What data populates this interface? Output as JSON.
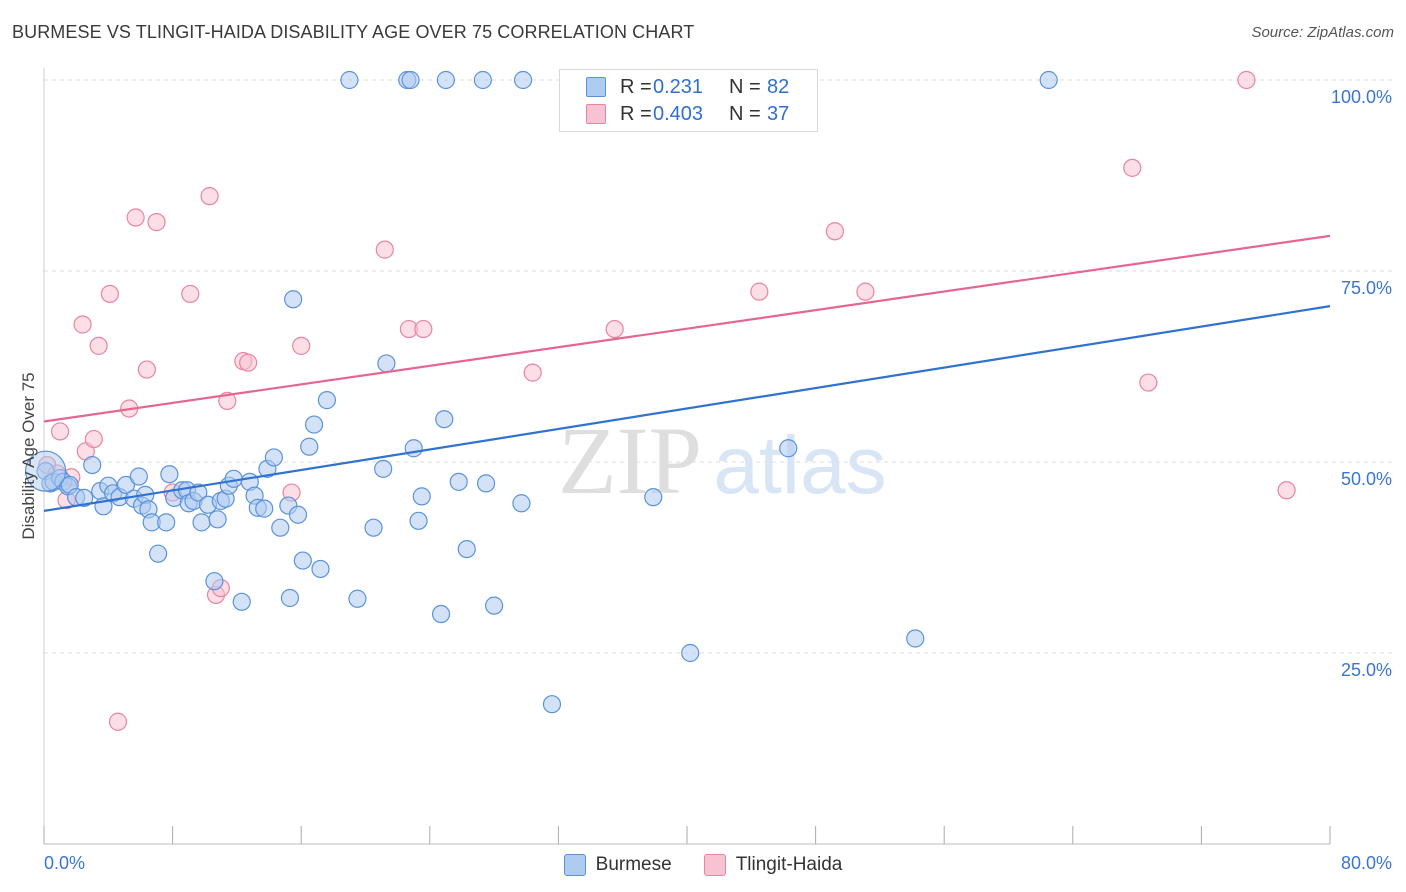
{
  "title": "BURMESE VS TLINGIT-HAIDA DISABILITY AGE OVER 75 CORRELATION CHART",
  "source": "Source: ZipAtlas.com",
  "watermark": {
    "zip": "ZIP",
    "atlas": "atlas"
  },
  "legend": {
    "r_label": "R =",
    "n_label": "N =",
    "burmese": {
      "r": "0.231",
      "n": "82"
    },
    "tlingit": {
      "r": "0.403",
      "n": "37"
    }
  },
  "colors": {
    "burmese_fill": "#aecbf0",
    "burmese_stroke": "#5b93d9",
    "burmese_line": "#2f72d0",
    "tlingit_fill": "#f7c3d2",
    "tlingit_stroke": "#e8859f",
    "tlingit_line": "#e5678f",
    "tick_label": "#3a76d0",
    "grid": "#dddddd"
  },
  "chart_data": {
    "type": "scatter",
    "title": "BURMESE VS TLINGIT-HAIDA DISABILITY AGE OVER 75 CORRELATION CHART",
    "xlabel": "",
    "ylabel": "Disability Age Over 75",
    "xlim": [
      0,
      80
    ],
    "ylim": [
      0,
      105
    ],
    "x_tick_labels": [
      "0.0%",
      "80.0%"
    ],
    "y_ticks": [
      25,
      50,
      75,
      100
    ],
    "y_tick_labels": [
      "25.0%",
      "50.0%",
      "75.0%",
      "100.0%"
    ],
    "grid": true,
    "legend_position": "top-center",
    "series": [
      {
        "name": "Burmese",
        "trend": {
          "x": [
            0,
            80
          ],
          "y": [
            43.6,
            70.4
          ]
        },
        "points": [
          [
            19,
            100
          ],
          [
            22.6,
            100
          ],
          [
            22.8,
            100
          ],
          [
            25,
            100
          ],
          [
            27.3,
            100
          ],
          [
            29.8,
            100
          ],
          [
            62.5,
            100
          ],
          [
            0.1,
            48.8
          ],
          [
            0.4,
            47.2
          ],
          [
            0.6,
            47.4
          ],
          [
            1.0,
            47.9
          ],
          [
            1.2,
            47.4
          ],
          [
            1.5,
            46.8
          ],
          [
            1.6,
            47.0
          ],
          [
            2.0,
            45.4
          ],
          [
            2.5,
            45.3
          ],
          [
            3.0,
            49.6
          ],
          [
            3.5,
            46.2
          ],
          [
            3.7,
            44.2
          ],
          [
            4.0,
            46.9
          ],
          [
            4.3,
            45.9
          ],
          [
            4.7,
            45.4
          ],
          [
            5.1,
            47.0
          ],
          [
            5.6,
            45.2
          ],
          [
            5.9,
            48.1
          ],
          [
            6.1,
            44.3
          ],
          [
            6.3,
            45.7
          ],
          [
            6.5,
            43.8
          ],
          [
            6.7,
            42.1
          ],
          [
            7.1,
            38.0
          ],
          [
            7.6,
            42.1
          ],
          [
            7.8,
            48.4
          ],
          [
            8.1,
            45.3
          ],
          [
            8.6,
            46.3
          ],
          [
            8.9,
            46.3
          ],
          [
            9.0,
            44.6
          ],
          [
            9.3,
            44.9
          ],
          [
            9.6,
            46.0
          ],
          [
            9.8,
            42.1
          ],
          [
            10.2,
            44.4
          ],
          [
            10.6,
            34.4
          ],
          [
            10.8,
            42.5
          ],
          [
            11.0,
            44.9
          ],
          [
            11.3,
            45.2
          ],
          [
            11.5,
            46.9
          ],
          [
            11.8,
            47.8
          ],
          [
            12.3,
            31.7
          ],
          [
            12.8,
            47.4
          ],
          [
            13.1,
            45.6
          ],
          [
            13.3,
            44.0
          ],
          [
            13.7,
            43.9
          ],
          [
            13.9,
            49.1
          ],
          [
            14.3,
            50.6
          ],
          [
            14.7,
            41.4
          ],
          [
            15.2,
            44.3
          ],
          [
            15.3,
            32.2
          ],
          [
            15.5,
            71.3
          ],
          [
            15.8,
            43.1
          ],
          [
            16.1,
            37.1
          ],
          [
            16.5,
            52.0
          ],
          [
            16.8,
            54.9
          ],
          [
            17.2,
            36.0
          ],
          [
            17.6,
            58.1
          ],
          [
            19.5,
            32.1
          ],
          [
            20.5,
            41.4
          ],
          [
            21.1,
            49.1
          ],
          [
            21.3,
            62.9
          ],
          [
            23.0,
            51.8
          ],
          [
            23.3,
            42.3
          ],
          [
            23.5,
            45.5
          ],
          [
            24.7,
            30.1
          ],
          [
            24.9,
            55.6
          ],
          [
            25.8,
            47.4
          ],
          [
            26.3,
            38.6
          ],
          [
            27.5,
            47.2
          ],
          [
            28.0,
            31.2
          ],
          [
            29.7,
            44.6
          ],
          [
            31.6,
            18.3
          ],
          [
            37.9,
            45.4
          ],
          [
            40.2,
            25.0
          ],
          [
            46.3,
            51.8
          ],
          [
            54.2,
            26.9
          ]
        ]
      },
      {
        "name": "Tlingit-Haida",
        "trend": {
          "x": [
            0,
            80
          ],
          "y": [
            55.3,
            79.6
          ]
        },
        "points": [
          [
            0.2,
            49.6
          ],
          [
            0.8,
            48.5
          ],
          [
            1.0,
            54.0
          ],
          [
            1.4,
            45.0
          ],
          [
            1.7,
            48.0
          ],
          [
            2.4,
            68.0
          ],
          [
            2.6,
            51.4
          ],
          [
            3.1,
            53.0
          ],
          [
            3.4,
            65.2
          ],
          [
            4.1,
            72.0
          ],
          [
            4.6,
            16.0
          ],
          [
            5.3,
            57.0
          ],
          [
            5.7,
            82.0
          ],
          [
            6.4,
            62.1
          ],
          [
            7.0,
            81.4
          ],
          [
            8.0,
            46.0
          ],
          [
            9.1,
            72.0
          ],
          [
            10.3,
            84.8
          ],
          [
            10.7,
            32.6
          ],
          [
            11.0,
            33.5
          ],
          [
            11.4,
            58.0
          ],
          [
            12.4,
            63.2
          ],
          [
            12.7,
            63.0
          ],
          [
            15.4,
            46.0
          ],
          [
            16.0,
            65.2
          ],
          [
            21.2,
            77.8
          ],
          [
            22.7,
            67.4
          ],
          [
            23.6,
            67.4
          ],
          [
            30.4,
            61.7
          ],
          [
            35.5,
            67.4
          ],
          [
            44.5,
            72.3
          ],
          [
            49.2,
            80.2
          ],
          [
            51.1,
            72.3
          ],
          [
            67.7,
            88.5
          ],
          [
            68.7,
            60.4
          ],
          [
            74.8,
            100
          ],
          [
            77.3,
            46.3
          ]
        ]
      }
    ]
  }
}
